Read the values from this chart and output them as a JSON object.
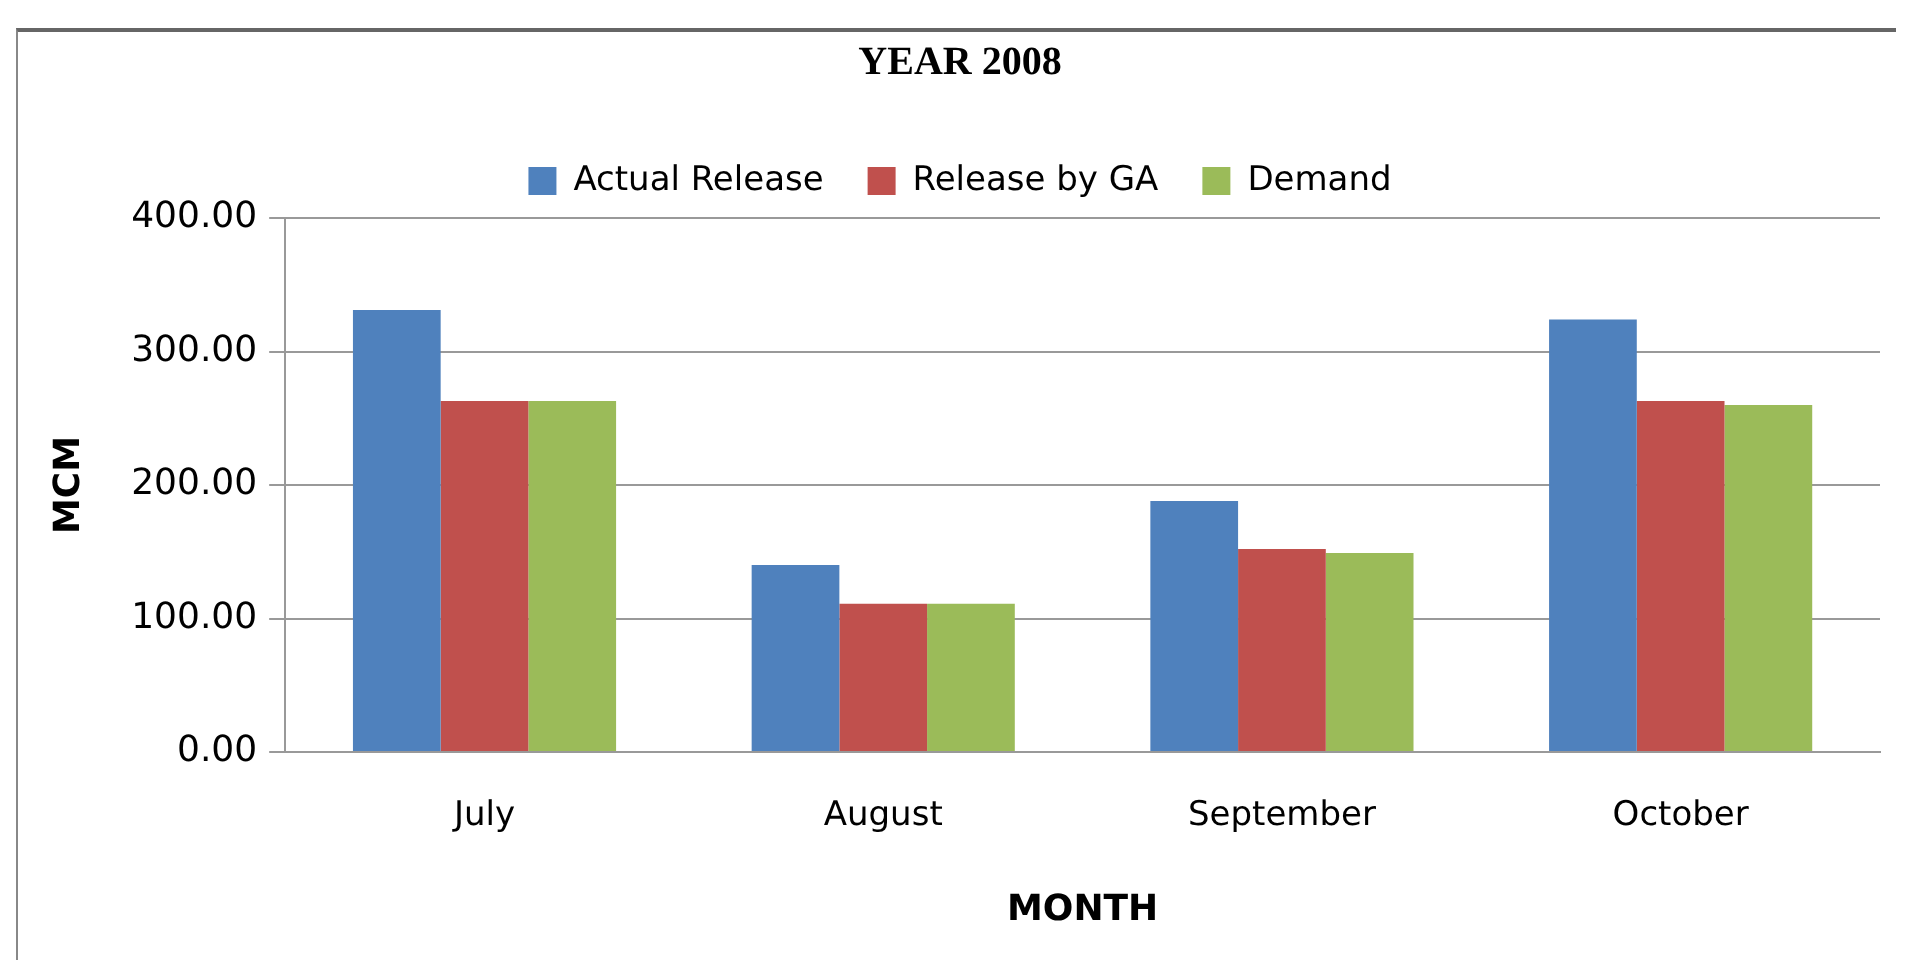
{
  "chart_data": {
    "type": "bar",
    "title": "YEAR 2008",
    "xlabel": "MONTH",
    "ylabel": "MCM",
    "categories": [
      "July",
      "August",
      "September",
      "October"
    ],
    "series": [
      {
        "name": "Actual Release",
        "color": "#4f81bd",
        "values": [
          331,
          140,
          188,
          324
        ]
      },
      {
        "name": "Release by GA",
        "color": "#c0504d",
        "values": [
          263,
          111,
          152,
          263
        ]
      },
      {
        "name": "Demand",
        "color": "#9bbb59",
        "values": [
          263,
          111,
          149,
          260
        ]
      }
    ],
    "ylim": [
      0,
      400
    ],
    "yticks": [
      {
        "value": 0,
        "label": "0.00"
      },
      {
        "value": 100,
        "label": "100.00"
      },
      {
        "value": 200,
        "label": "200.00"
      },
      {
        "value": 300,
        "label": "300.00"
      },
      {
        "value": 400,
        "label": "400.00"
      }
    ],
    "grid": "y",
    "legend": "top"
  }
}
